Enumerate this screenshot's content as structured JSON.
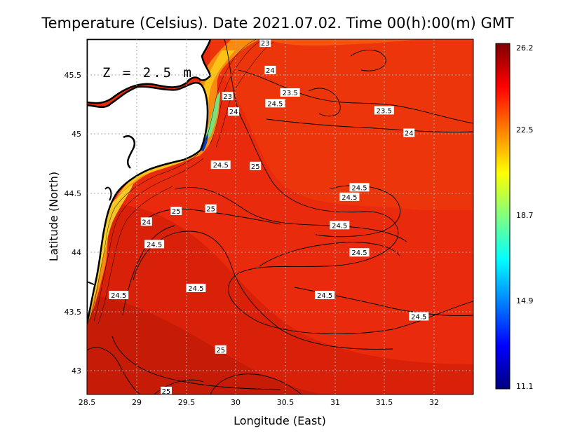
{
  "title": "Temperature (Celsius). Date 2021.07.02. Time 00(h):00(m) GMT",
  "depth_label": "Z = 2.5 m",
  "x_axis": {
    "label": "Longitude (East)",
    "range": [
      28.5,
      32.4
    ],
    "ticks": [
      "28.5",
      "29",
      "29.5",
      "30",
      "30.5",
      "31",
      "31.5",
      "32"
    ]
  },
  "y_axis": {
    "label": "Latitude (North)",
    "range": [
      42.8,
      45.8
    ],
    "ticks": [
      "43",
      "43.5",
      "44",
      "44.5",
      "45",
      "45.5"
    ]
  },
  "colorbar": {
    "ticks": [
      "26.2",
      "22.5",
      "18.7",
      "14.9",
      "11.1"
    ],
    "min": 11.1,
    "max": 26.2,
    "colors": [
      "#00007f",
      "#0000ff",
      "#0080ff",
      "#00ffff",
      "#80ff80",
      "#ffff00",
      "#ff8000",
      "#ff0000",
      "#7f0000"
    ]
  },
  "chart_data": {
    "type": "heatmap",
    "title": "Temperature (Celsius). Date 2021.07.02. Time 00(h):00(m) GMT",
    "xlabel": "Longitude (East)",
    "ylabel": "Latitude (North)",
    "xlim": [
      28.5,
      32.4
    ],
    "ylim": [
      42.8,
      45.8
    ],
    "value_range": [
      11.1,
      26.2
    ],
    "grid": true,
    "contour_labels": [
      {
        "text": "23",
        "lon": 30.3,
        "lat": 45.77
      },
      {
        "text": "24",
        "lon": 30.35,
        "lat": 45.54
      },
      {
        "text": "23.5",
        "lon": 30.55,
        "lat": 45.35
      },
      {
        "text": "24.5",
        "lon": 30.4,
        "lat": 45.26
      },
      {
        "text": "23",
        "lon": 29.92,
        "lat": 45.32
      },
      {
        "text": "24",
        "lon": 29.98,
        "lat": 45.19
      },
      {
        "text": "23.5",
        "lon": 31.5,
        "lat": 45.2
      },
      {
        "text": "24",
        "lon": 31.75,
        "lat": 45.01
      },
      {
        "text": "24.5",
        "lon": 29.85,
        "lat": 44.74
      },
      {
        "text": "25",
        "lon": 30.2,
        "lat": 44.73
      },
      {
        "text": "24.5",
        "lon": 31.25,
        "lat": 44.55
      },
      {
        "text": "24.5",
        "lon": 31.15,
        "lat": 44.47
      },
      {
        "text": "25",
        "lon": 29.4,
        "lat": 44.35
      },
      {
        "text": "25",
        "lon": 29.75,
        "lat": 44.37
      },
      {
        "text": "24",
        "lon": 29.1,
        "lat": 44.26
      },
      {
        "text": "24.5",
        "lon": 31.05,
        "lat": 44.23
      },
      {
        "text": "24.5",
        "lon": 29.18,
        "lat": 44.07
      },
      {
        "text": "24.5",
        "lon": 31.25,
        "lat": 44.0
      },
      {
        "text": "24.5",
        "lon": 29.6,
        "lat": 43.7
      },
      {
        "text": "24.5",
        "lon": 28.82,
        "lat": 43.64
      },
      {
        "text": "24.5",
        "lon": 30.9,
        "lat": 43.64
      },
      {
        "text": "24.5",
        "lon": 31.85,
        "lat": 43.46
      },
      {
        "text": "25",
        "lon": 29.85,
        "lat": 43.18
      },
      {
        "text": "25",
        "lon": 29.3,
        "lat": 42.83
      }
    ]
  }
}
